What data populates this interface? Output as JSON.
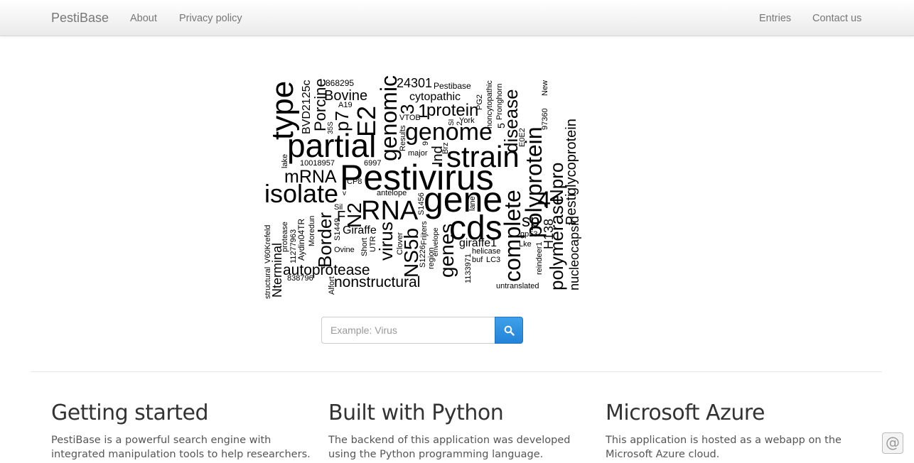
{
  "nav": {
    "brand": "PestiBase",
    "about": "About",
    "privacy": "Privacy policy",
    "entries": "Entries",
    "contact": "Contact us"
  },
  "search": {
    "placeholder": "Example: Virus",
    "icon": "search-icon"
  },
  "features": [
    {
      "title": "Getting started",
      "text": "PestiBase is a powerful search engine with integrated manipulation tools to help researchers."
    },
    {
      "title": "Built with Python",
      "text": "The backend of this application was developed using the Python programming language."
    },
    {
      "title": "Microsoft Azure",
      "text": "This application is hosted as a webapp on the Microsoft Azure cloud."
    }
  ],
  "corner": {
    "glyph": "@",
    "icon": "at-sign-icon"
  },
  "wordcloud": {
    "w0": "Pestivirus",
    "w1": "gene",
    "w2": "strain",
    "w3": "cds",
    "w4": "partial",
    "w5": "genome",
    "w6": "type",
    "w7": "RNA",
    "w8": "isolate",
    "w9": "E2",
    "w10": "genomic",
    "w11": "polyprotein",
    "w12": "complete",
    "w13": "virus",
    "w14": "NS5b",
    "w15": "N2",
    "w16": "genes",
    "w17": "p7",
    "w18": "Border",
    "w19": "Porcine",
    "w20": "mRNA",
    "w21": "Bovine",
    "w22": "protein",
    "w23": "disease",
    "w24": "Npro",
    "w25": "polymerase",
    "w26": "glycoprotein",
    "w27": "Pesti",
    "w28": "nucleocapsid",
    "w29": "nonstructural",
    "w30": "autoprotease",
    "w31": "Nterminal",
    "w32": "structural",
    "w33": "V60Krefeld",
    "w34": "cytopathic",
    "w35": "24301",
    "w36": "Pestibase",
    "w37": "868295",
    "w38": "BVD2125c",
    "w39": "A19",
    "w40": "35S",
    "w41": "10018957",
    "w42": "6997",
    "w43": "CP8",
    "w44": "antelope",
    "w45": "Sil",
    "w46": "Giraffe",
    "w47": "S1449",
    "w48": "Ovine",
    "w49": "Short",
    "w50": "UTR",
    "w51": "Clover",
    "w52": "S1226",
    "w53": "region",
    "w54": "Frijters",
    "w55": "envelope",
    "w56": "S1456",
    "w57": "lane",
    "w58": "giraffe1",
    "w59": "helicase",
    "w60": "buf",
    "w61": "LC3",
    "w62": "1133971",
    "w63": "untranslated",
    "w64": "protease",
    "w65": "11277963",
    "w66": "Aydin04TR",
    "w67": "Moredun",
    "w68": "838796",
    "w69": "Alfort",
    "w70": "lake",
    "w71": "VTOB",
    "w72": "Results",
    "w73": "major",
    "w74": "Brz",
    "w75": "Ind",
    "w76": "York",
    "w77": "SI",
    "w78": "2",
    "w79": "9",
    "w80": "noncytopathic",
    "w81": "PG2",
    "w82": "Pronghorn",
    "w83": "5",
    "w84": "E0E2",
    "w85": "sp",
    "w86": "gp53",
    "w87": "Lke",
    "w88": "reindeer1",
    "w89": "H138",
    "w90": "97360",
    "w91": "New",
    "w92": "4",
    "w93": "3",
    "w94": "1",
    "w95": "v",
    "w96": "F"
  }
}
